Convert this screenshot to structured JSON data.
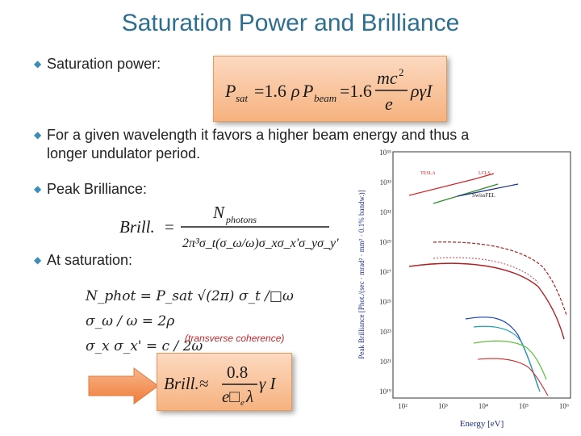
{
  "slide": {
    "title": "Saturation Power and Brilliance"
  },
  "bullets": [
    {
      "text": "Saturation power:"
    },
    {
      "text": "For a given wavelength it favors a higher beam energy and thus a",
      "text2": "longer undulator period."
    },
    {
      "text": "Peak Brilliance:"
    },
    {
      "text": "At saturation:"
    }
  ],
  "equations": {
    "sat_power": {
      "lhs": "P",
      "lhs_sub": "sat",
      "eq1": "=1.6",
      "rho": "ρ",
      "pbeam": "P",
      "pbeam_sub": "beam",
      "eq2": "=1.6",
      "num": "mc",
      "num_sup": "2",
      "den": "e",
      "tail": "ργI"
    },
    "brill": {
      "lhs": "Brill.",
      "eq": "=",
      "num": "N",
      "num_sub": "photons",
      "den": "2π³σ_t(σ_ω/ω)σ_xσ_x'σ_yσ_y'"
    },
    "sat1": "N_phot = P_sat √(2π) σ_t /□ω",
    "sat2": "σ_ω / ω = 2ρ",
    "sat3": "σ_x σ_x' = c / 2ω",
    "final": {
      "lhs": "Brill.≈",
      "num": "0.8",
      "den": "e□",
      "den_sub": "e",
      "den_tail": "λ",
      "tail": "γ I"
    }
  },
  "note": "(transverse coherence)",
  "figure": {
    "ylabel": "Peak Brilliance [Phot./(sec · mrad² · mm² · 0.1% bandw.)]",
    "xlabel": "Energy [eV]",
    "y_ticks": [
      "10³⁵",
      "10³³",
      "10³¹",
      "10²⁹",
      "10²⁷",
      "10²⁵",
      "10²³",
      "10²¹",
      "10¹⁹"
    ],
    "x_ticks": [
      "10²",
      "10³",
      "10⁴",
      "10⁵",
      "10⁶"
    ],
    "labels": {
      "swissfel": "SwissFEL",
      "tesla": "TESLA",
      "lcls": "LCLS"
    },
    "colors": {
      "fel": "#cc2a2a",
      "fel2": "#2d8a2d",
      "swiss": "#1a2e8a",
      "storage": "#b02020",
      "cyan": "#20a0b0",
      "green": "#60c040",
      "blue": "#1a40c0"
    }
  }
}
